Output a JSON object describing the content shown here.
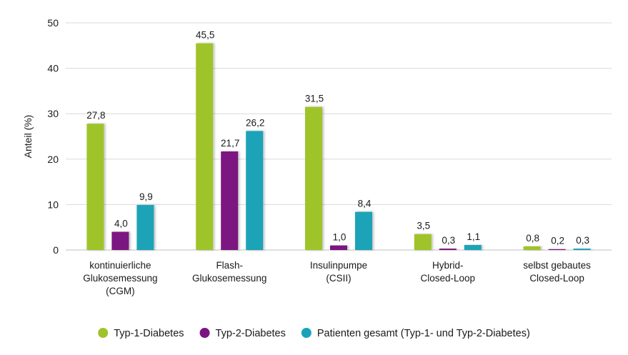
{
  "chart_data": {
    "type": "bar",
    "ylabel": "Anteil (%)",
    "ylim": [
      0,
      50
    ],
    "yticks": [
      0,
      10,
      20,
      30,
      40,
      50
    ],
    "grid": true,
    "legend_position": "bottom",
    "categories": [
      [
        "kontinuierliche",
        "Glukosemessung",
        "(CGM)"
      ],
      [
        "Flash-",
        "Glukosemessung"
      ],
      [
        "Insulinpumpe",
        "(CSII)"
      ],
      [
        "Hybrid-",
        "Closed-Loop"
      ],
      [
        "selbst gebautes",
        "Closed-Loop"
      ]
    ],
    "series": [
      {
        "name": "Typ-1-Diabetes",
        "color": "#9fc42a",
        "values": [
          27.8,
          45.5,
          31.5,
          3.5,
          0.8
        ],
        "labels": [
          "27,8",
          "45,5",
          "31,5",
          "3,5",
          "0,8"
        ]
      },
      {
        "name": "Typ-2-Diabetes",
        "color": "#7b1480",
        "values": [
          4.0,
          21.7,
          1.0,
          0.3,
          0.2
        ],
        "labels": [
          "4,0",
          "21,7",
          "1,0",
          "0,3",
          "0,2"
        ]
      },
      {
        "name": "Patienten gesamt (Typ-1- und Typ-2-Diabetes)",
        "color": "#1aa3b8",
        "values": [
          9.9,
          26.2,
          8.4,
          1.1,
          0.3
        ],
        "labels": [
          "9,9",
          "26,2",
          "8,4",
          "1,1",
          "0,3"
        ]
      }
    ]
  }
}
